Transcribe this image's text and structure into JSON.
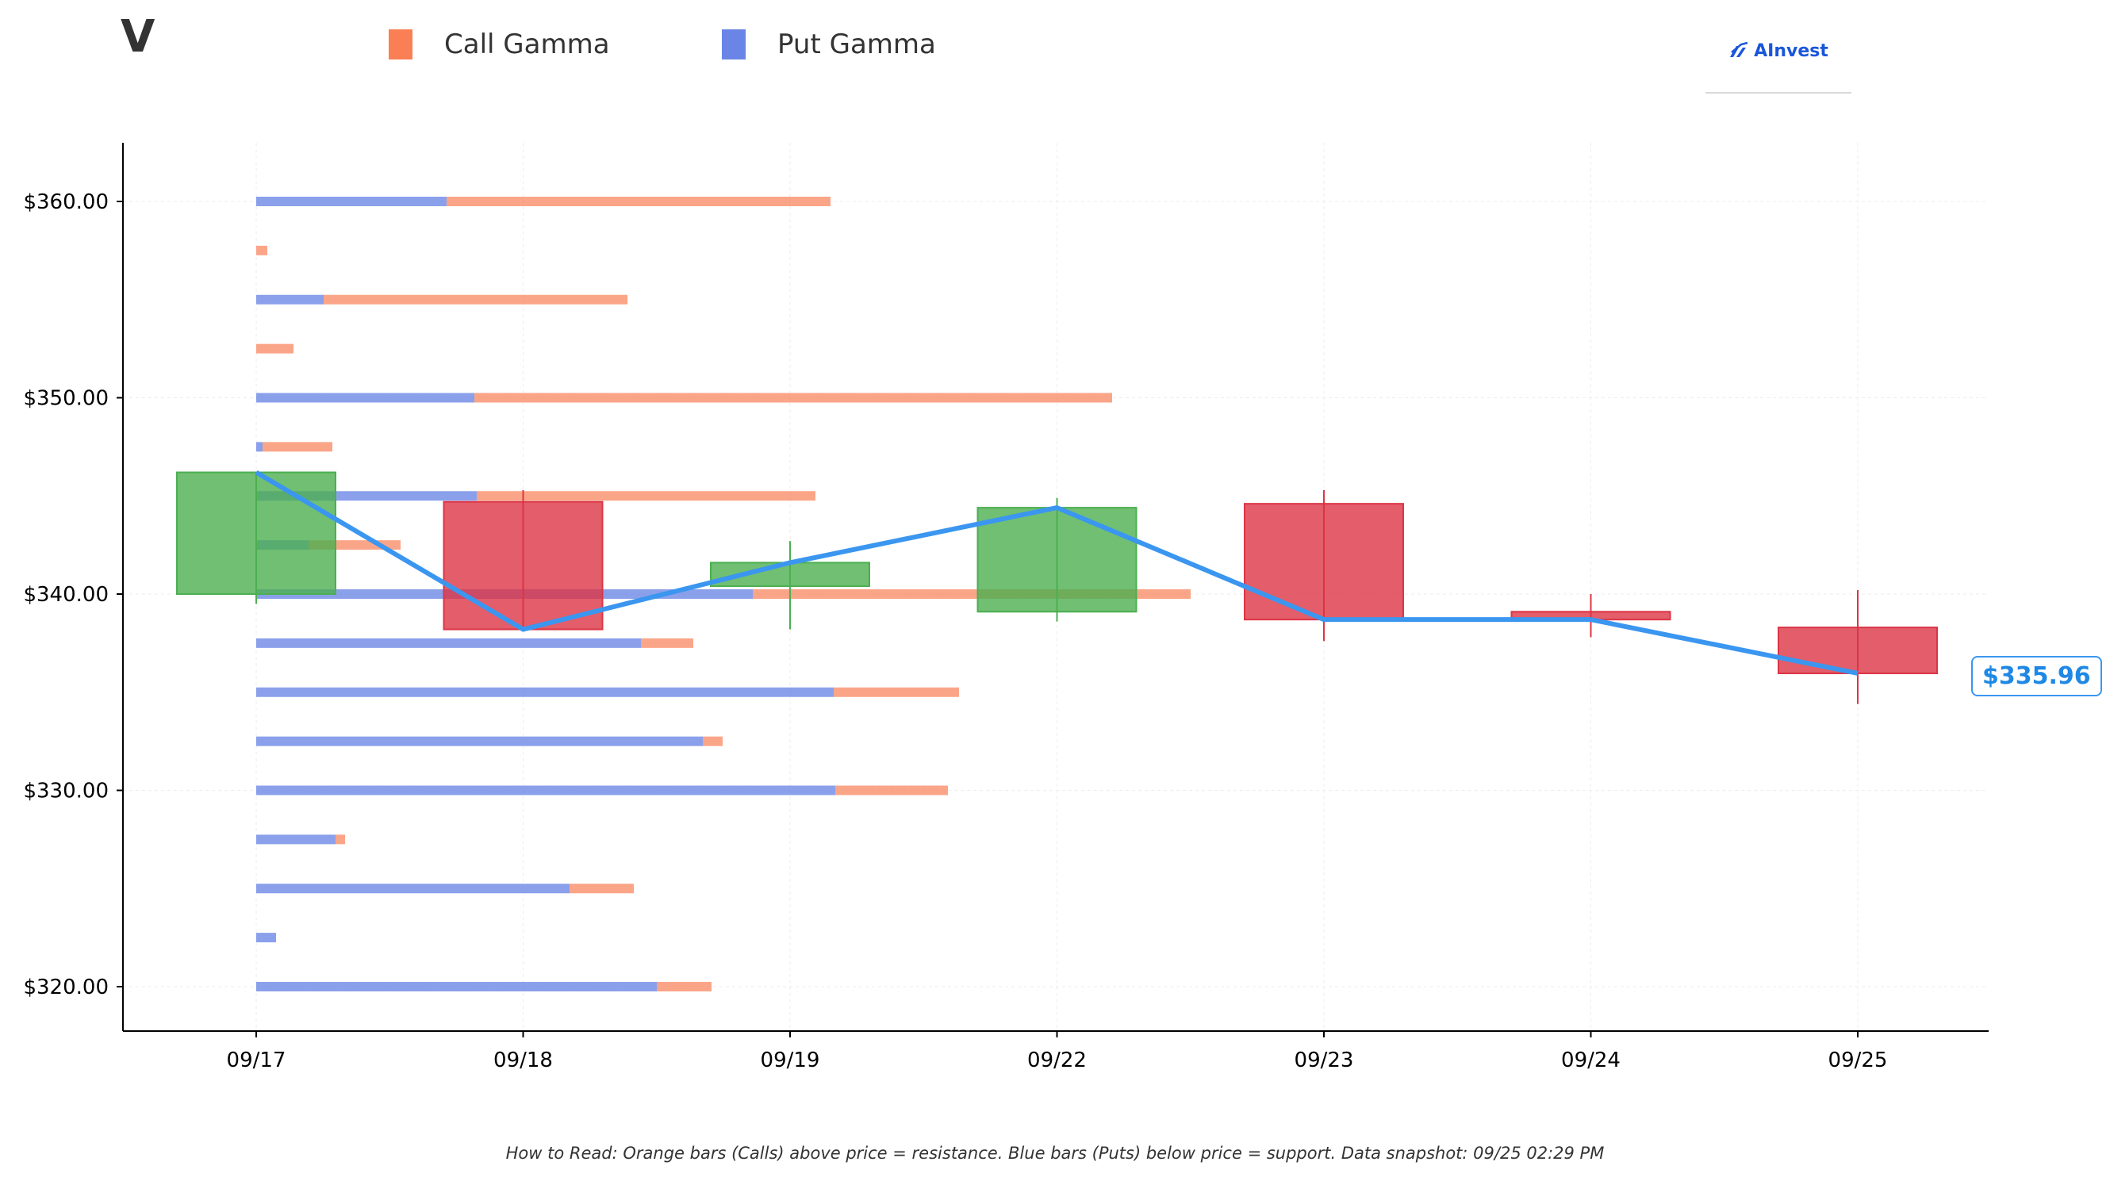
{
  "header": {
    "ticker": "V"
  },
  "legend": [
    {
      "label": "Call Gamma",
      "color": "#fa7f55"
    },
    {
      "label": "Put Gamma",
      "color": "#6a85e6"
    }
  ],
  "logo": {
    "text": "AInvest",
    "icon": "ainvest-logo-icon"
  },
  "footer": {
    "note": "How to Read: Orange bars (Calls) above price = resistance. Blue bars (Puts) below price = support. Data snapshot: 09/25 02:29 PM"
  },
  "current_price_label": "$335.96",
  "colors": {
    "up": "#4caf50",
    "down": "#dc3545",
    "line": "#3b96f0",
    "call": "#fa7f55",
    "put": "#6a85e6"
  },
  "chart_data": {
    "type": "bar",
    "candles": [
      {
        "date": "09/17",
        "open": 340.0,
        "close": 346.2,
        "high": 346.2,
        "low": 339.5
      },
      {
        "date": "09/18",
        "open": 344.7,
        "close": 338.2,
        "high": 345.3,
        "low": 338.2
      },
      {
        "date": "09/19",
        "open": 340.4,
        "close": 341.6,
        "high": 342.7,
        "low": 338.2
      },
      {
        "date": "09/22",
        "open": 339.1,
        "close": 344.4,
        "high": 344.9,
        "low": 338.6
      },
      {
        "date": "09/23",
        "open": 344.6,
        "close": 338.7,
        "high": 345.3,
        "low": 337.6
      },
      {
        "date": "09/24",
        "open": 339.1,
        "close": 338.7,
        "high": 340.0,
        "low": 337.8
      },
      {
        "date": "09/25",
        "open": 338.3,
        "close": 335.96,
        "high": 340.2,
        "low": 334.4
      }
    ],
    "price_line": [
      346.2,
      338.2,
      341.6,
      344.4,
      338.7,
      338.7,
      335.96
    ],
    "gamma_levels": [
      {
        "strike": 360.0,
        "put": 24,
        "call": 48.4
      },
      {
        "strike": 357.5,
        "put": 0,
        "call": 1.4
      },
      {
        "strike": 355.0,
        "put": 8.5,
        "call": 38.3
      },
      {
        "strike": 352.5,
        "put": 0,
        "call": 4.7
      },
      {
        "strike": 350.0,
        "put": 27.5,
        "call": 80.4
      },
      {
        "strike": 347.5,
        "put": 0.8,
        "call": 8.8
      },
      {
        "strike": 345.0,
        "put": 27.8,
        "call": 42.7
      },
      {
        "strike": 342.5,
        "put": 6.6,
        "call": 11.6
      },
      {
        "strike": 340.0,
        "put": 62.6,
        "call": 55.2
      },
      {
        "strike": 337.5,
        "put": 48.5,
        "call": 6.6
      },
      {
        "strike": 335.0,
        "put": 72.8,
        "call": 15.8
      },
      {
        "strike": 332.5,
        "put": 56.3,
        "call": 2.5
      },
      {
        "strike": 330.0,
        "put": 73.0,
        "call": 14.2
      },
      {
        "strike": 327.5,
        "put": 10.0,
        "call": 1.2
      },
      {
        "strike": 325.0,
        "put": 39.5,
        "call": 8.1
      },
      {
        "strike": 322.5,
        "put": 2.5,
        "call": 0
      },
      {
        "strike": 320.0,
        "put": 50.5,
        "call": 6.9
      }
    ],
    "x_categories": [
      "09/17",
      "09/18",
      "09/19",
      "09/22",
      "09/23",
      "09/24",
      "09/25"
    ],
    "y_ticks": [
      "$320.00",
      "$330.00",
      "$340.00",
      "$350.00",
      "$360.00"
    ],
    "ylim": [
      317.75,
      362.95
    ],
    "grid": true,
    "legend_position": "top-left"
  }
}
